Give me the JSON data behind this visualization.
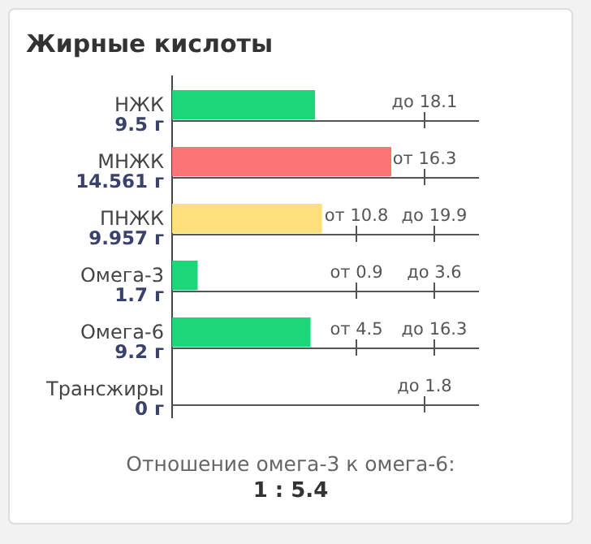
{
  "chart_data": [
    {
      "type": "bar",
      "orientation": "horizontal",
      "title": "Жирные кислоты",
      "categories": [
        "НЖК",
        "МНЖК",
        "ПНЖК",
        "Омега-3",
        "Омега-6",
        "Трансжиры"
      ],
      "values": [
        9.5,
        14.561,
        9.957,
        1.7,
        9.2,
        0
      ],
      "value_labels": [
        "9.5 г",
        "14.561 г",
        "9.957 г",
        "1.7 г",
        "9.2 г",
        "0 г"
      ],
      "colors": [
        "#1ed67a",
        "#fd7474",
        "#fde07c",
        "#1ed67a",
        "#1ed67a",
        "#1ed67a"
      ],
      "annotations": [
        "до 18.1",
        "от 16.3",
        "от 10.8",
        "до 19.9",
        "от 0.9",
        "до 3.6",
        "от 4.5",
        "до 16.3",
        "до 1.8"
      ]
    },
    {
      "type": "other",
      "annotations": [
        "Отношение омега-3 к омега-6:",
        "1 : 5.4"
      ]
    }
  ]
}
